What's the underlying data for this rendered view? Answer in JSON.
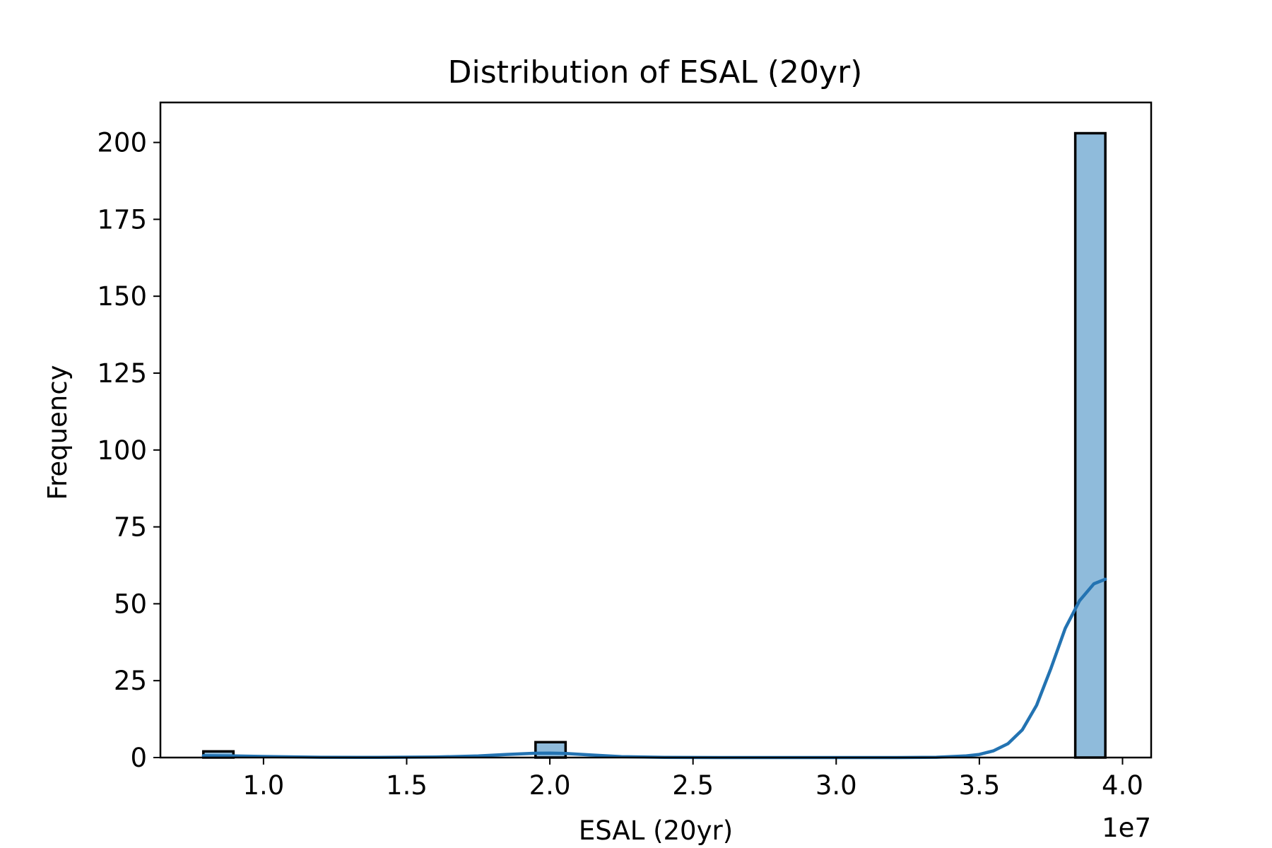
{
  "chart_data": {
    "type": "bar",
    "title": "Distribution of ESAL (20yr)",
    "xlabel": "ESAL (20yr)",
    "ylabel": "Frequency",
    "x_scale_label": "1e7",
    "x_scale_factor": 10000000,
    "xlim": [
      0.64,
      4.1
    ],
    "ylim": [
      0,
      213
    ],
    "x_ticks": [
      1.0,
      1.5,
      2.0,
      2.5,
      3.0,
      3.5,
      4.0
    ],
    "x_tick_labels": [
      "1.0",
      "1.5",
      "2.0",
      "2.5",
      "3.0",
      "3.5",
      "4.0"
    ],
    "y_ticks": [
      0,
      25,
      50,
      75,
      100,
      125,
      150,
      175,
      200
    ],
    "y_tick_labels": [
      "0",
      "25",
      "50",
      "75",
      "100",
      "125",
      "150",
      "175",
      "200"
    ],
    "bin_start": 0.79,
    "bin_width": 0.105,
    "bins": [
      {
        "x0": 0.79,
        "x1": 0.895,
        "count": 2
      },
      {
        "x0": 1.95,
        "x1": 2.055,
        "count": 5
      },
      {
        "x0": 3.835,
        "x1": 3.94,
        "count": 203
      }
    ],
    "kde": {
      "x": [
        0.79,
        0.9,
        1.0,
        1.2,
        1.4,
        1.6,
        1.75,
        1.85,
        1.95,
        2.0,
        2.05,
        2.15,
        2.25,
        2.4,
        2.6,
        2.8,
        3.0,
        3.2,
        3.35,
        3.45,
        3.5,
        3.55,
        3.6,
        3.65,
        3.7,
        3.75,
        3.8,
        3.85,
        3.9,
        3.94
      ],
      "y": [
        0.6,
        0.5,
        0.35,
        0.1,
        0.05,
        0.15,
        0.5,
        1.0,
        1.4,
        1.45,
        1.35,
        0.8,
        0.3,
        0.05,
        0.0,
        0.0,
        0.0,
        0.0,
        0.1,
        0.5,
        1.0,
        2.2,
        4.5,
        9.0,
        17.0,
        29.0,
        42.0,
        51.0,
        56.5,
        58.0
      ]
    },
    "colors": {
      "bar_fill": "#8fbbdb",
      "bar_edge": "#000000",
      "kde_line": "#2373b2"
    },
    "grid": false,
    "legend": "none"
  }
}
